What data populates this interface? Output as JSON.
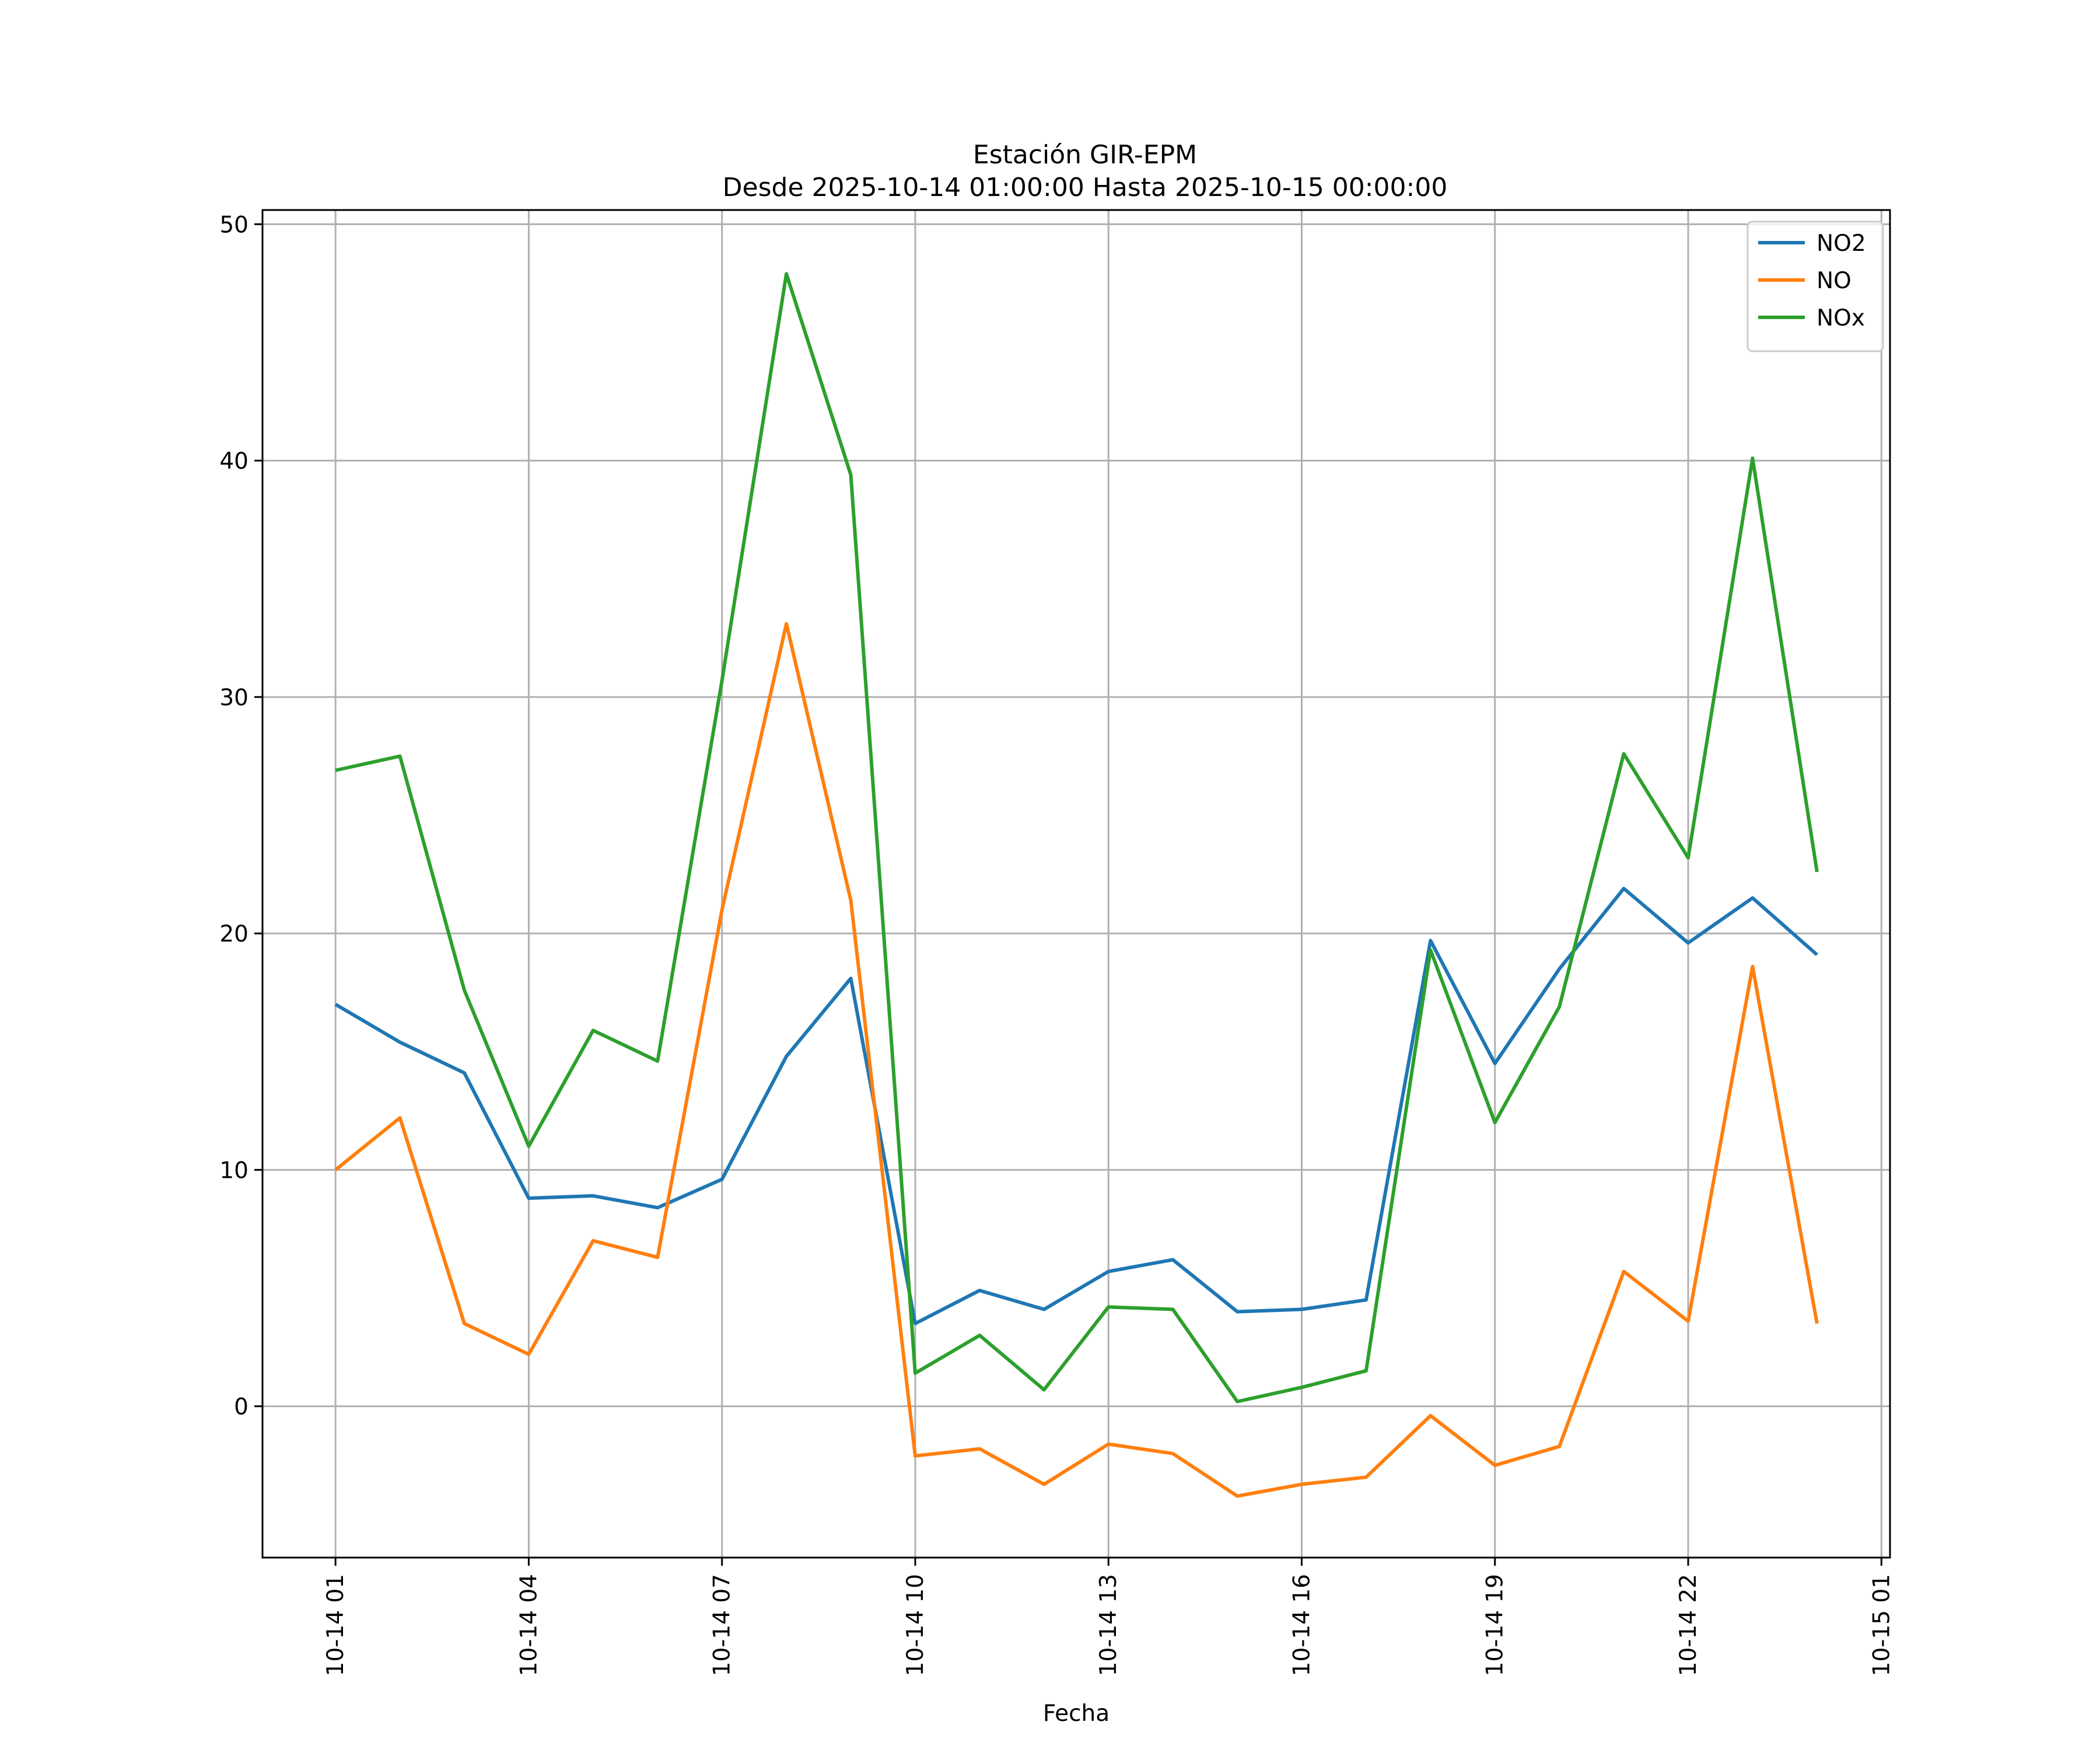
{
  "chart_data": {
    "type": "line",
    "title": "Estación GIR-EPM",
    "subtitle": "Desde 2025-10-14 01:00:00 Hasta 2025-10-15 00:00:00",
    "xlabel": "Fecha",
    "ylabel": "",
    "x": [
      "2025-10-14 01:00",
      "2025-10-14 02:00",
      "2025-10-14 03:00",
      "2025-10-14 04:00",
      "2025-10-14 05:00",
      "2025-10-14 06:00",
      "2025-10-14 07:00",
      "2025-10-14 08:00",
      "2025-10-14 09:00",
      "2025-10-14 10:00",
      "2025-10-14 11:00",
      "2025-10-14 12:00",
      "2025-10-14 13:00",
      "2025-10-14 14:00",
      "2025-10-14 15:00",
      "2025-10-14 16:00",
      "2025-10-14 17:00",
      "2025-10-14 18:00",
      "2025-10-14 19:00",
      "2025-10-14 20:00",
      "2025-10-14 21:00",
      "2025-10-14 22:00",
      "2025-10-14 23:00",
      "2025-10-15 00:00"
    ],
    "x_tick_labels": [
      "10-14 01",
      "10-14 04",
      "10-14 07",
      "10-14 10",
      "10-14 13",
      "10-14 16",
      "10-14 19",
      "10-14 22",
      "10-15 01"
    ],
    "x_ticks": [
      "2025-10-14 01:00",
      "2025-10-14 04:00",
      "2025-10-14 07:00",
      "2025-10-14 10:00",
      "2025-10-14 13:00",
      "2025-10-14 16:00",
      "2025-10-14 19:00",
      "2025-10-14 22:00",
      "2025-10-15 01:00"
    ],
    "xlim": [
      "2025-10-13 23:52",
      "2025-10-15 01:08"
    ],
    "y_ticks": [
      0,
      10,
      20,
      30,
      40,
      50
    ],
    "y_tick_labels": [
      "0",
      "10",
      "20",
      "30",
      "40",
      "50"
    ],
    "ylim": [
      -6.4,
      50.6
    ],
    "grid": true,
    "legend_position": "top-right",
    "series": [
      {
        "name": "NO2",
        "color": "#1f77b4",
        "values": [
          17.0,
          15.4,
          14.1,
          8.8,
          8.9,
          8.4,
          9.6,
          14.8,
          18.1,
          3.5,
          4.9,
          4.1,
          5.7,
          6.2,
          4.0,
          4.1,
          4.5,
          19.7,
          14.5,
          18.5,
          21.9,
          19.6,
          21.5,
          19.1
        ]
      },
      {
        "name": "NO",
        "color": "#ff7f0e",
        "values": [
          10.0,
          12.2,
          3.5,
          2.2,
          7.0,
          6.3,
          21.0,
          33.1,
          21.4,
          -2.1,
          -1.8,
          -3.3,
          -1.6,
          -2.0,
          -3.8,
          -3.3,
          -3.0,
          -0.4,
          -2.5,
          -1.7,
          5.7,
          3.6,
          18.6,
          3.5
        ]
      },
      {
        "name": "NOx",
        "color": "#2ca02c",
        "values": [
          26.9,
          27.5,
          17.6,
          11.0,
          15.9,
          14.6,
          30.7,
          47.9,
          39.4,
          1.4,
          3.0,
          0.7,
          4.2,
          4.1,
          0.2,
          0.8,
          1.5,
          19.3,
          12.0,
          16.9,
          27.6,
          23.2,
          40.1,
          22.6
        ]
      }
    ]
  }
}
